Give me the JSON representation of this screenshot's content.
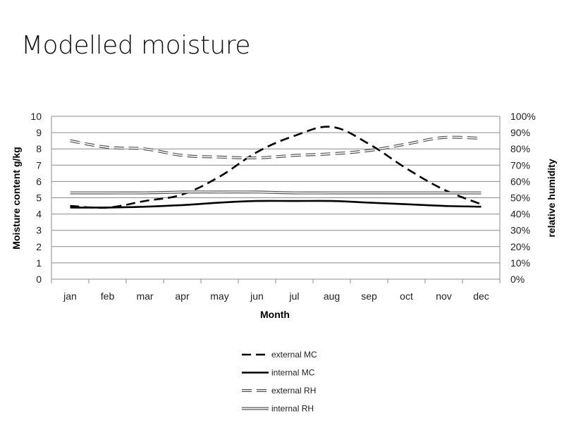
{
  "slide": {
    "title": "Modelled moisture"
  },
  "chart_data": {
    "type": "line",
    "title": "",
    "xlabel": "Month",
    "ylabel": "Moisture content g/kg",
    "y2label": "relative humidity",
    "categories": [
      "jan",
      "feb",
      "mar",
      "apr",
      "may",
      "jun",
      "jul",
      "aug",
      "sep",
      "oct",
      "nov",
      "dec"
    ],
    "ylim": [
      0,
      10
    ],
    "yticks": [
      "0",
      "1",
      "2",
      "3",
      "4",
      "5",
      "6",
      "7",
      "8",
      "9",
      "10"
    ],
    "y2lim": [
      0,
      100
    ],
    "y2ticks": [
      "0%",
      "10%",
      "20%",
      "30%",
      "40%",
      "50%",
      "60%",
      "70%",
      "80%",
      "90%",
      "100%"
    ],
    "grid": true,
    "legend": "bottom",
    "series": [
      {
        "name": "external MC",
        "axis": "left",
        "style": "dashed",
        "color": "#000000",
        "values": [
          4.5,
          4.4,
          4.8,
          5.2,
          6.3,
          7.8,
          8.8,
          9.35,
          8.3,
          6.8,
          5.5,
          4.6
        ]
      },
      {
        "name": "internal MC",
        "axis": "left",
        "style": "solid",
        "color": "#000000",
        "values": [
          4.4,
          4.4,
          4.45,
          4.55,
          4.7,
          4.8,
          4.8,
          4.8,
          4.7,
          4.6,
          4.5,
          4.45
        ]
      },
      {
        "name": "external RH",
        "axis": "right",
        "style": "double-dashed",
        "color": "#555555",
        "values": [
          85,
          81,
          80,
          76,
          75,
          74.5,
          76,
          77,
          79,
          83,
          87,
          86.5
        ]
      },
      {
        "name": "internal RH",
        "axis": "right",
        "style": "double",
        "color": "#555555",
        "values": [
          53,
          53,
          53,
          53.5,
          53.5,
          53.5,
          53,
          53,
          53,
          53,
          53,
          53
        ]
      }
    ]
  }
}
